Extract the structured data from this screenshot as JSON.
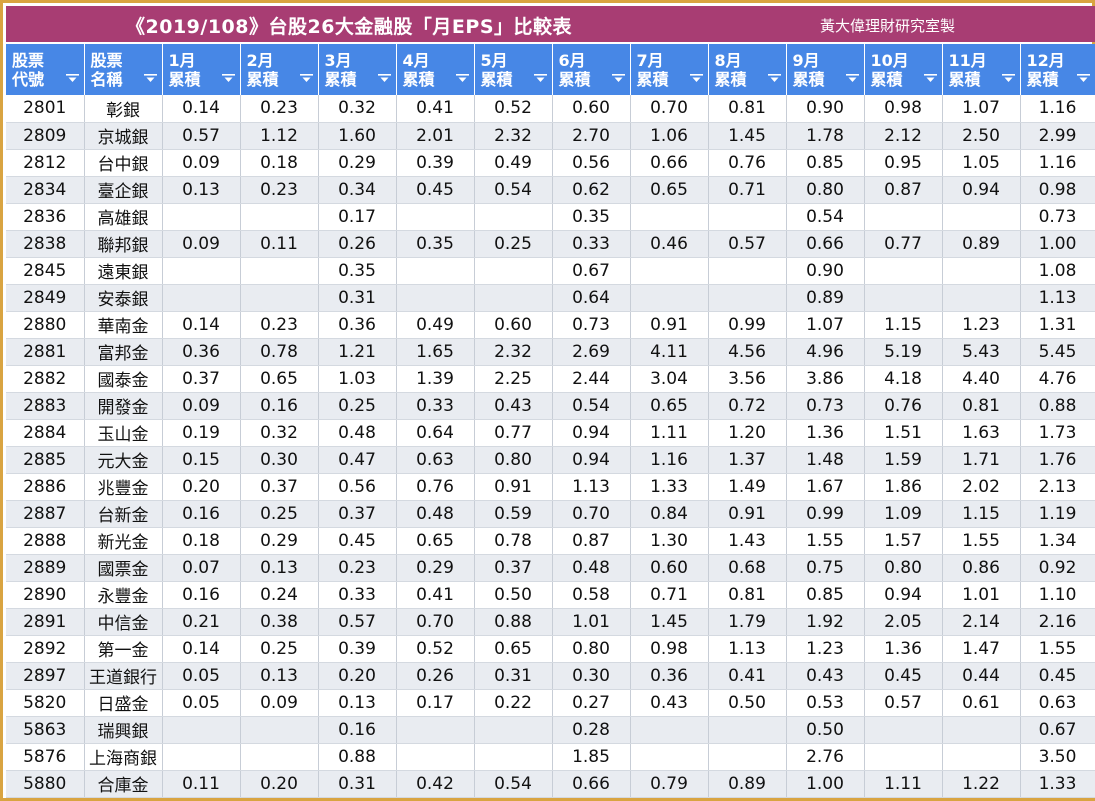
{
  "title": "《2019/108》台股26大金融股「月EPS」比較表",
  "credit": "黃大偉理財研究室製",
  "columns": [
    {
      "line1": "股票",
      "line2": "代號"
    },
    {
      "line1": "股票",
      "line2": "名稱"
    },
    {
      "line1": "1月",
      "line2": "累積"
    },
    {
      "line1": "2月",
      "line2": "累積"
    },
    {
      "line1": "3月",
      "line2": "累積"
    },
    {
      "line1": "4月",
      "line2": "累積"
    },
    {
      "line1": "5月",
      "line2": "累積"
    },
    {
      "line1": "6月",
      "line2": "累積"
    },
    {
      "line1": "7月",
      "line2": "累積"
    },
    {
      "line1": "8月",
      "line2": "累積"
    },
    {
      "line1": "9月",
      "line2": "累積"
    },
    {
      "line1": "10月",
      "line2": "累積"
    },
    {
      "line1": "11月",
      "line2": "累積"
    },
    {
      "line1": "12月",
      "line2": "累積"
    }
  ],
  "rows": [
    [
      "2801",
      "彰銀",
      "0.14",
      "0.23",
      "0.32",
      "0.41",
      "0.52",
      "0.60",
      "0.70",
      "0.81",
      "0.90",
      "0.98",
      "1.07",
      "1.16"
    ],
    [
      "2809",
      "京城銀",
      "0.57",
      "1.12",
      "1.60",
      "2.01",
      "2.32",
      "2.70",
      "1.06",
      "1.45",
      "1.78",
      "2.12",
      "2.50",
      "2.99"
    ],
    [
      "2812",
      "台中銀",
      "0.09",
      "0.18",
      "0.29",
      "0.39",
      "0.49",
      "0.56",
      "0.66",
      "0.76",
      "0.85",
      "0.95",
      "1.05",
      "1.16"
    ],
    [
      "2834",
      "臺企銀",
      "0.13",
      "0.23",
      "0.34",
      "0.45",
      "0.54",
      "0.62",
      "0.65",
      "0.71",
      "0.80",
      "0.87",
      "0.94",
      "0.98"
    ],
    [
      "2836",
      "高雄銀",
      "",
      "",
      "0.17",
      "",
      "",
      "0.35",
      "",
      "",
      "0.54",
      "",
      "",
      "0.73"
    ],
    [
      "2838",
      "聯邦銀",
      "0.09",
      "0.11",
      "0.26",
      "0.35",
      "0.25",
      "0.33",
      "0.46",
      "0.57",
      "0.66",
      "0.77",
      "0.89",
      "1.00"
    ],
    [
      "2845",
      "遠東銀",
      "",
      "",
      "0.35",
      "",
      "",
      "0.67",
      "",
      "",
      "0.90",
      "",
      "",
      "1.08"
    ],
    [
      "2849",
      "安泰銀",
      "",
      "",
      "0.31",
      "",
      "",
      "0.64",
      "",
      "",
      "0.89",
      "",
      "",
      "1.13"
    ],
    [
      "2880",
      "華南金",
      "0.14",
      "0.23",
      "0.36",
      "0.49",
      "0.60",
      "0.73",
      "0.91",
      "0.99",
      "1.07",
      "1.15",
      "1.23",
      "1.31"
    ],
    [
      "2881",
      "富邦金",
      "0.36",
      "0.78",
      "1.21",
      "1.65",
      "2.32",
      "2.69",
      "4.11",
      "4.56",
      "4.96",
      "5.19",
      "5.43",
      "5.45"
    ],
    [
      "2882",
      "國泰金",
      "0.37",
      "0.65",
      "1.03",
      "1.39",
      "2.25",
      "2.44",
      "3.04",
      "3.56",
      "3.86",
      "4.18",
      "4.40",
      "4.76"
    ],
    [
      "2883",
      "開發金",
      "0.09",
      "0.16",
      "0.25",
      "0.33",
      "0.43",
      "0.54",
      "0.65",
      "0.72",
      "0.73",
      "0.76",
      "0.81",
      "0.88"
    ],
    [
      "2884",
      "玉山金",
      "0.19",
      "0.32",
      "0.48",
      "0.64",
      "0.77",
      "0.94",
      "1.11",
      "1.20",
      "1.36",
      "1.51",
      "1.63",
      "1.73"
    ],
    [
      "2885",
      "元大金",
      "0.15",
      "0.30",
      "0.47",
      "0.63",
      "0.80",
      "0.94",
      "1.16",
      "1.37",
      "1.48",
      "1.59",
      "1.71",
      "1.76"
    ],
    [
      "2886",
      "兆豐金",
      "0.20",
      "0.37",
      "0.56",
      "0.76",
      "0.91",
      "1.13",
      "1.33",
      "1.49",
      "1.67",
      "1.86",
      "2.02",
      "2.13"
    ],
    [
      "2887",
      "台新金",
      "0.16",
      "0.25",
      "0.37",
      "0.48",
      "0.59",
      "0.70",
      "0.84",
      "0.91",
      "0.99",
      "1.09",
      "1.15",
      "1.19"
    ],
    [
      "2888",
      "新光金",
      "0.18",
      "0.29",
      "0.45",
      "0.65",
      "0.78",
      "0.87",
      "1.30",
      "1.43",
      "1.55",
      "1.57",
      "1.55",
      "1.34"
    ],
    [
      "2889",
      "國票金",
      "0.07",
      "0.13",
      "0.23",
      "0.29",
      "0.37",
      "0.48",
      "0.60",
      "0.68",
      "0.75",
      "0.80",
      "0.86",
      "0.92"
    ],
    [
      "2890",
      "永豐金",
      "0.16",
      "0.24",
      "0.33",
      "0.41",
      "0.50",
      "0.58",
      "0.71",
      "0.81",
      "0.85",
      "0.94",
      "1.01",
      "1.10"
    ],
    [
      "2891",
      "中信金",
      "0.21",
      "0.38",
      "0.57",
      "0.70",
      "0.88",
      "1.01",
      "1.45",
      "1.79",
      "1.92",
      "2.05",
      "2.14",
      "2.16"
    ],
    [
      "2892",
      "第一金",
      "0.14",
      "0.25",
      "0.39",
      "0.52",
      "0.65",
      "0.80",
      "0.98",
      "1.13",
      "1.23",
      "1.36",
      "1.47",
      "1.55"
    ],
    [
      "2897",
      "王道銀行",
      "0.05",
      "0.13",
      "0.20",
      "0.26",
      "0.31",
      "0.30",
      "0.36",
      "0.41",
      "0.43",
      "0.45",
      "0.44",
      "0.45"
    ],
    [
      "5820",
      "日盛金",
      "0.05",
      "0.09",
      "0.13",
      "0.17",
      "0.22",
      "0.27",
      "0.43",
      "0.50",
      "0.53",
      "0.57",
      "0.61",
      "0.63"
    ],
    [
      "5863",
      "瑞興銀",
      "",
      "",
      "0.16",
      "",
      "",
      "0.28",
      "",
      "",
      "0.50",
      "",
      "",
      "0.67"
    ],
    [
      "5876",
      "上海商銀",
      "",
      "",
      "0.88",
      "",
      "",
      "1.85",
      "",
      "",
      "2.76",
      "",
      "",
      "3.50"
    ],
    [
      "5880",
      "合庫金",
      "0.11",
      "0.20",
      "0.31",
      "0.42",
      "0.54",
      "0.66",
      "0.79",
      "0.89",
      "1.00",
      "1.11",
      "1.22",
      "1.33"
    ]
  ],
  "colors": {
    "title_bg": "#a83d73",
    "header_bg": "#4787e6",
    "frame": "#d9a441",
    "stripe": "#e9ecf1"
  },
  "icons": {
    "filter": "filter-dropdown-icon"
  }
}
